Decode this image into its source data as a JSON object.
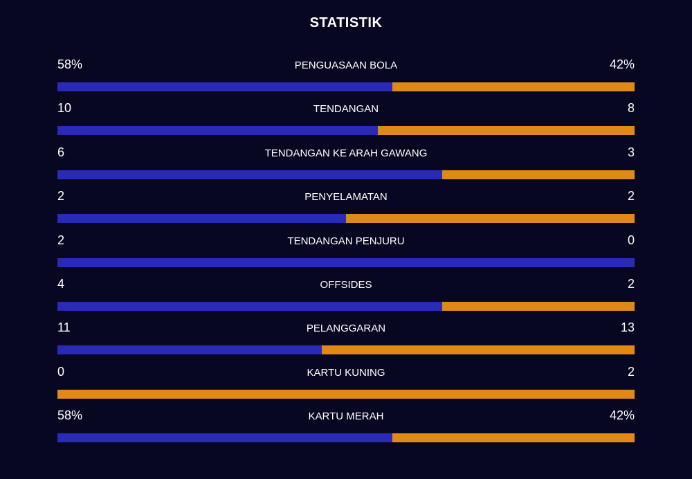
{
  "title": "STATISTIK",
  "colors": {
    "background": "#080722",
    "home": "#2a2ab8",
    "away": "#e08a15",
    "text": "#ffffff"
  },
  "chart_data": {
    "type": "bar",
    "orientation": "horizontal-stacked-comparison",
    "title": "STATISTIK",
    "categories": [
      "PENGUASAAN BOLA",
      "TENDANGAN",
      "TENDANGAN KE ARAH GAWANG",
      "PENYELAMATAN",
      "TENDANGAN PENJURU",
      "OFFSIDES",
      "PELANGGARAN",
      "KARTU KUNING",
      "KARTU MERAH"
    ],
    "series": [
      {
        "values": [
          58,
          10,
          6,
          2,
          2,
          4,
          11,
          0,
          58
        ]
      },
      {
        "values": [
          42,
          8,
          3,
          2,
          0,
          2,
          13,
          2,
          42
        ]
      }
    ],
    "home_labels": [
      "58%",
      "10",
      "6",
      "2",
      "2",
      "4",
      "11",
      "0",
      "58%"
    ],
    "away_labels": [
      "42%",
      "8",
      "3",
      "2",
      "0",
      "2",
      "13",
      "2",
      "42%"
    ]
  }
}
